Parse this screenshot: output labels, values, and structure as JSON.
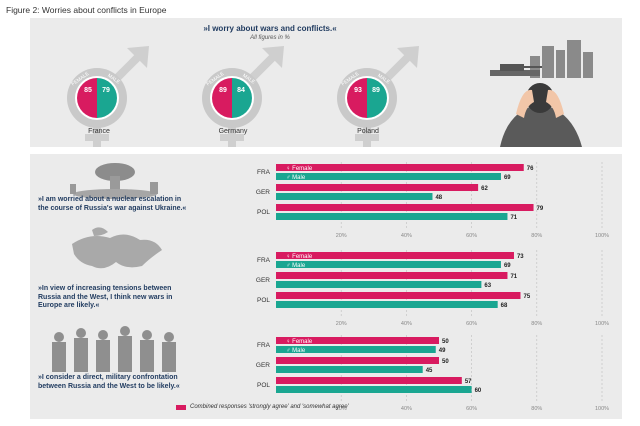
{
  "figure_title": "Figure 2: Worries about conflicts in Europe",
  "top": {
    "headline": "»I worry about wars and conflicts.«",
    "subline": "All figures in %",
    "female_word": "FEMALE",
    "male_word": "MALE",
    "countries": [
      {
        "name": "France",
        "female": 85,
        "male": 79
      },
      {
        "name": "Germany",
        "female": 89,
        "male": 84
      },
      {
        "name": "Poland",
        "female": 93,
        "male": 89
      }
    ]
  },
  "colors": {
    "female": "#d81b60",
    "male": "#1aa691",
    "grid": "#bdbdbd",
    "ring": "#c9c9c9"
  },
  "footer_note": "Combined responses 'strongly agree' and 'somewhat agree'",
  "chart_data": [
    {
      "type": "bar",
      "statement": "»I am worried about a nuclear escalation in the course of Russia's war against Ukraine.«",
      "categories": [
        "FRA",
        "GER",
        "POL"
      ],
      "series": [
        {
          "name": "Female",
          "values": [
            76,
            62,
            79
          ]
        },
        {
          "name": "Male",
          "values": [
            69,
            48,
            71
          ]
        }
      ],
      "xlim": [
        0,
        100
      ],
      "ticks": [
        "20%",
        "40%",
        "60%",
        "80%",
        "100%"
      ]
    },
    {
      "type": "bar",
      "statement": "»In view of increasing tensions between Russia and the West, I think new wars in Europe are likely.«",
      "categories": [
        "FRA",
        "GER",
        "POL"
      ],
      "series": [
        {
          "name": "Female",
          "values": [
            73,
            71,
            75
          ]
        },
        {
          "name": "Male",
          "values": [
            69,
            63,
            68
          ]
        }
      ],
      "xlim": [
        0,
        100
      ],
      "ticks": [
        "20%",
        "40%",
        "60%",
        "80%",
        "100%"
      ]
    },
    {
      "type": "bar",
      "statement": "»I consider a direct, military confrontation between Russia and the West to be likely.«",
      "categories": [
        "FRA",
        "GER",
        "POL"
      ],
      "series": [
        {
          "name": "Female",
          "values": [
            50,
            50,
            57
          ]
        },
        {
          "name": "Male",
          "values": [
            49,
            45,
            60
          ]
        }
      ],
      "xlim": [
        0,
        100
      ],
      "ticks": [
        "20%",
        "40%",
        "60%",
        "80%",
        "100%"
      ]
    }
  ]
}
